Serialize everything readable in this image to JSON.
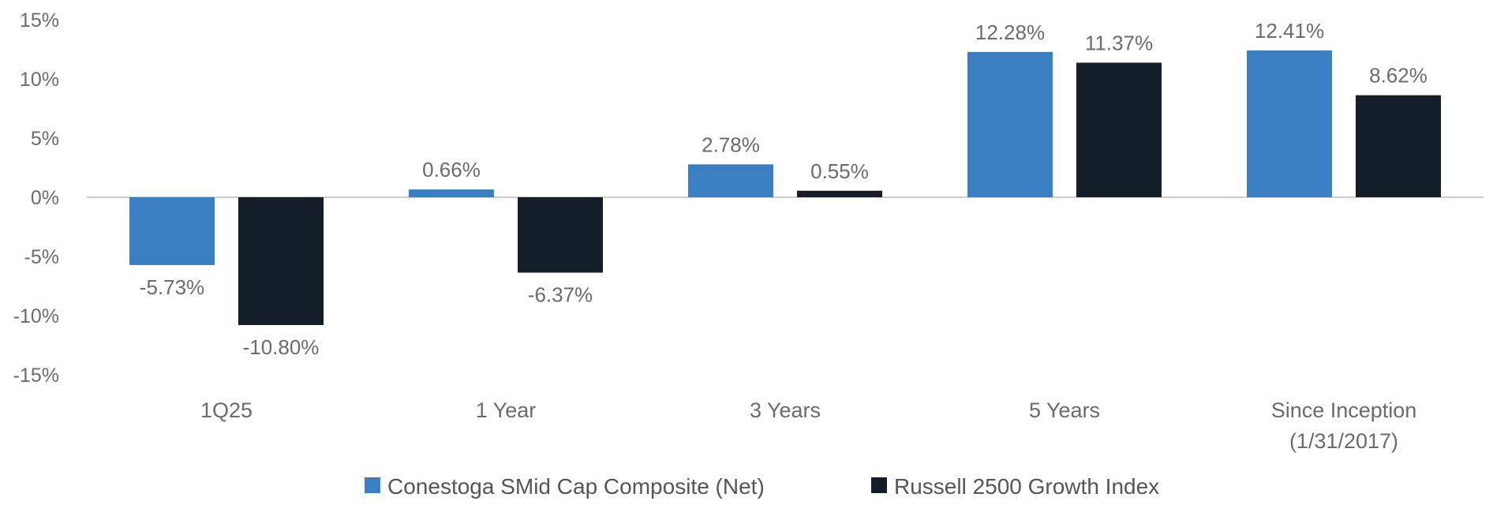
{
  "chart_data": {
    "type": "bar",
    "title": "",
    "xlabel": "",
    "ylabel": "",
    "ylim": [
      -15,
      15
    ],
    "yticks": [
      15,
      10,
      5,
      0,
      -5,
      -10,
      -15
    ],
    "ytick_labels": [
      "15%",
      "10%",
      "5%",
      "0%",
      "-5%",
      "-10%",
      "-15%"
    ],
    "grid": false,
    "legend_position": "bottom",
    "categories": [
      [
        "1Q25"
      ],
      [
        "1 Year"
      ],
      [
        "3 Years"
      ],
      [
        "5 Years"
      ],
      [
        "Since Inception",
        "(1/31/2017)"
      ]
    ],
    "series": [
      {
        "name": "Conestoga SMid Cap Composite (Net)",
        "color": "#3a7fc1",
        "values": [
          -5.73,
          0.66,
          2.78,
          12.28,
          12.41
        ],
        "labels": [
          "-5.73%",
          "0.66%",
          "2.78%",
          "12.28%",
          "12.41%"
        ]
      },
      {
        "name": "Russell 2500 Growth Index",
        "color": "#141e28",
        "values": [
          -10.8,
          -6.37,
          0.55,
          11.37,
          8.62
        ],
        "labels": [
          "-10.80%",
          "-6.37%",
          "0.55%",
          "11.37%",
          "8.62%"
        ]
      }
    ]
  }
}
